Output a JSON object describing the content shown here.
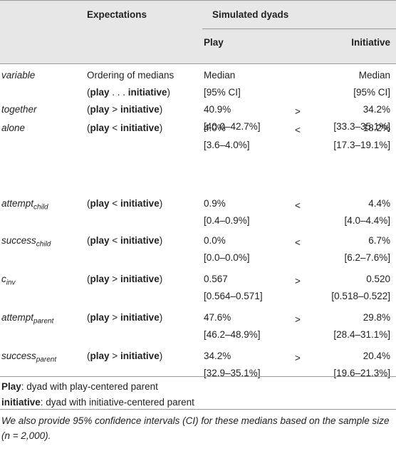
{
  "header": {
    "expectations": "Expectations",
    "simulated_dyads": "Simulated dyads",
    "play": "Play",
    "initiative": "Initiative"
  },
  "subheader": {
    "variable": "variable",
    "ordering_line1": "Ordering of medians",
    "ordering_line2": {
      "open": "(",
      "play": "play",
      "dots": " . . . ",
      "initiative": "initiative",
      "close": ")"
    },
    "median": "Median",
    "ci": "[95% CI]"
  },
  "rows": [
    {
      "var": "together",
      "sub": "",
      "left": "play",
      "op": ">",
      "right": "initiative",
      "play_median": "40.9%",
      "play_ci": "[40.0–42.7%]",
      "cmp": ">",
      "init_median": "34.2%",
      "init_ci": "[33.3–35.1%]"
    },
    {
      "var": "alone",
      "sub": "",
      "left": "play",
      "op": "<",
      "right": "initiative",
      "play_median": "4.0%",
      "play_ci": "[3.6–4.0%]",
      "cmp": "<",
      "init_median": "18.2%",
      "init_ci": "[17.3–19.1%]"
    },
    {
      "var": "attempt",
      "sub": "child",
      "left": "play",
      "op": "<",
      "right": "initiative",
      "play_median": "0.9%",
      "play_ci": "[0.4–0.9%]",
      "cmp": "<",
      "init_median": "4.4%",
      "init_ci": "[4.0–4.4%]"
    },
    {
      "var": "success",
      "sub": "child",
      "left": "play",
      "op": "<",
      "right": "initiative",
      "play_median": "0.0%",
      "play_ci": "[0.0–0.0%]",
      "cmp": "<",
      "init_median": "6.7%",
      "init_ci": "[6.2–7.6%]"
    },
    {
      "var": "c",
      "sub": "inv",
      "left": "play",
      "op": ">",
      "right": "initiative",
      "play_median": "0.567",
      "play_ci": "[0.564–0.571]",
      "cmp": ">",
      "init_median": "0.520",
      "init_ci": "[0.518–0.522]"
    },
    {
      "var": "attempt",
      "sub": "parent",
      "left": "play",
      "op": ">",
      "right": "initiative",
      "play_median": "47.6%",
      "play_ci": "[46.2–48.9%]",
      "cmp": ">",
      "init_median": "29.8%",
      "init_ci": "[28.4–31.1%]"
    },
    {
      "var": "success",
      "sub": "parent",
      "left": "play",
      "op": ">",
      "right": "initiative",
      "play_median": "34.2%",
      "play_ci": "[32.9–35.1%]",
      "cmp": ">",
      "init_median": "20.4%",
      "init_ci": "[19.6–21.3%]"
    }
  ],
  "footnotes": [
    {
      "term": "Play",
      "text": ": dyad with play-centered parent"
    },
    {
      "term": "initiative",
      "text": ": dyad with initiative-centered parent"
    }
  ],
  "note": "We also provide 95% confidence intervals (CI) for these medians based on the sample size (n = 2,000)."
}
